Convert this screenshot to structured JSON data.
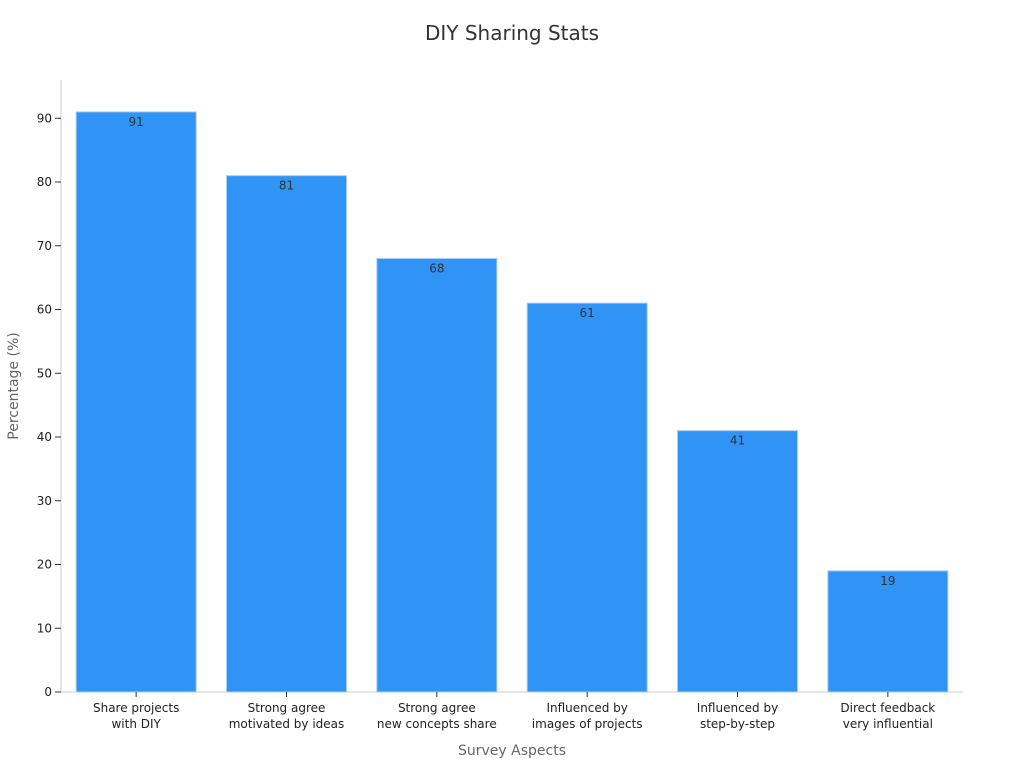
{
  "chart_data": {
    "type": "bar",
    "title": "DIY Sharing Stats",
    "xlabel": "Survey Aspects",
    "ylabel": "Percentage (%)",
    "categories": [
      [
        "Share projects",
        "with DIY"
      ],
      [
        "Strong agree",
        "motivated by ideas"
      ],
      [
        "Strong agree",
        "new concepts share"
      ],
      [
        "Influenced by",
        "images of projects"
      ],
      [
        "Influenced by",
        "step-by-step"
      ],
      [
        "Direct feedback",
        "very influential"
      ]
    ],
    "values": [
      91,
      81,
      68,
      61,
      41,
      19
    ],
    "ylim": [
      0,
      96
    ],
    "yticks": [
      0,
      10,
      20,
      30,
      40,
      50,
      60,
      70,
      80,
      90
    ],
    "grid": false,
    "legend": "none",
    "bar_color": "#3094f7",
    "bar_edge_color": "#a9cdf6"
  }
}
